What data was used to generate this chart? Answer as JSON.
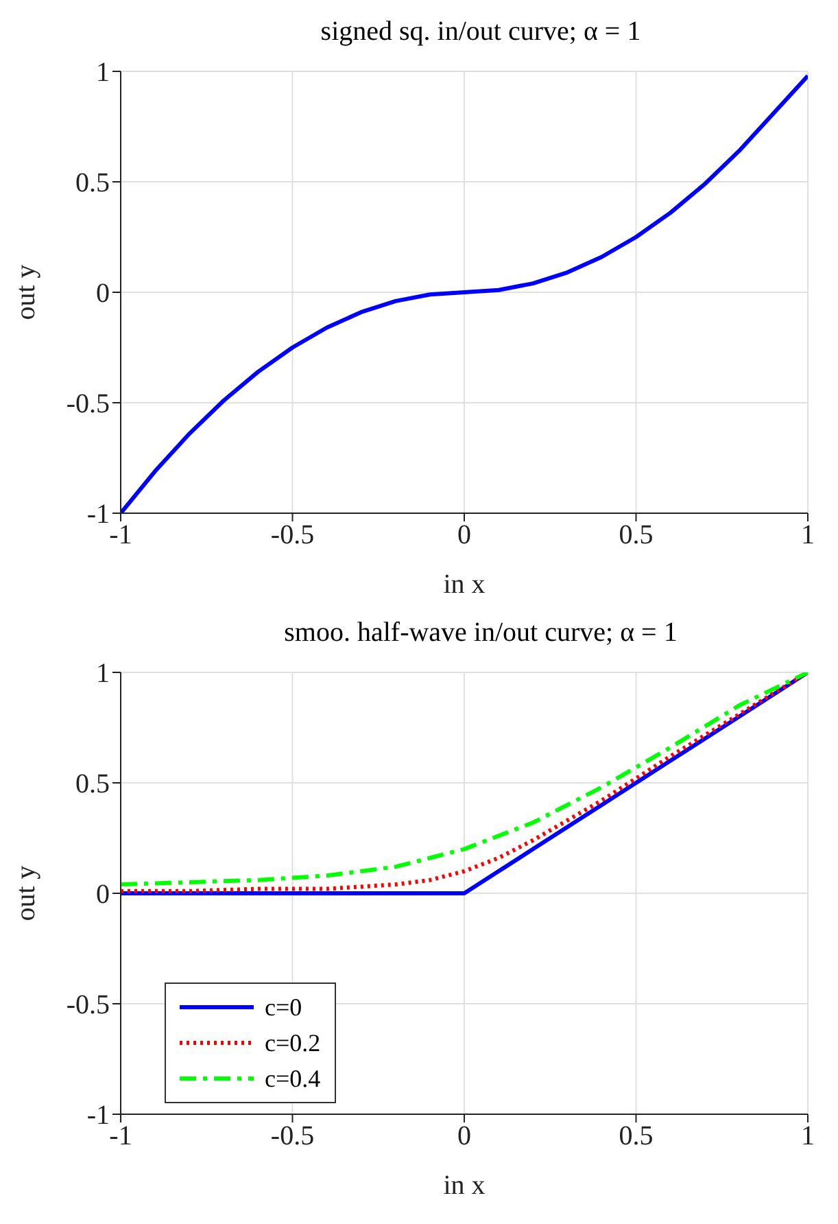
{
  "chart_data": [
    {
      "type": "line",
      "title": "signed sq. in/out curve; α = 1",
      "xlabel": "in x",
      "ylabel": "out y",
      "x": [
        -1,
        -0.9,
        -0.8,
        -0.7,
        -0.6,
        -0.5,
        -0.4,
        -0.3,
        -0.2,
        -0.1,
        0,
        0.1,
        0.2,
        0.3,
        0.4,
        0.5,
        0.6,
        0.7,
        0.8,
        0.9,
        1
      ],
      "series": [
        {
          "color": "#0000ff",
          "values": [
            -1,
            -0.81,
            -0.64,
            -0.49,
            -0.36,
            -0.25,
            -0.16,
            -0.09,
            -0.04,
            -0.01,
            0,
            0.01,
            0.04,
            0.09,
            0.16,
            0.25,
            0.36,
            0.49,
            0.64,
            0.81,
            0.98
          ]
        }
      ],
      "xlim": [
        -1,
        1
      ],
      "xticks": [
        -1,
        -0.5,
        0,
        0.5,
        1
      ],
      "ylim": [
        -1,
        1
      ],
      "yticks": [
        -1,
        -0.5,
        0,
        0.5,
        1
      ],
      "grid": true,
      "marker": "none",
      "line_style": "solid"
    },
    {
      "type": "line",
      "title": "smoo. half-wave in/out curve; α = 1",
      "xlabel": "in x",
      "ylabel": "out y",
      "x": [
        -1,
        -0.8,
        -0.6,
        -0.4,
        -0.2,
        -0.1,
        0,
        0.1,
        0.2,
        0.4,
        0.6,
        0.8,
        1
      ],
      "series": [
        {
          "name": "c=0",
          "color": "#0000ff",
          "line_style": "solid",
          "values": [
            0,
            0,
            0,
            0,
            0,
            0,
            0,
            0.1,
            0.2,
            0.4,
            0.6,
            0.8,
            1
          ]
        },
        {
          "name": "c=0.2",
          "color": "#ff0000",
          "line_style": "dotted",
          "values": [
            0.01,
            0.01,
            0.02,
            0.02,
            0.04,
            0.06,
            0.1,
            0.16,
            0.24,
            0.42,
            0.62,
            0.81,
            1
          ]
        },
        {
          "name": "c=0.4",
          "color": "#00ff00",
          "line_style": "dashed",
          "values": [
            0.04,
            0.05,
            0.06,
            0.08,
            0.12,
            0.16,
            0.2,
            0.26,
            0.32,
            0.48,
            0.66,
            0.85,
            1
          ]
        }
      ],
      "xlim": [
        -1,
        1
      ],
      "xticks": [
        -1,
        -0.5,
        0,
        0.5,
        1
      ],
      "ylim": [
        -1,
        1
      ],
      "yticks": [
        -1,
        -0.5,
        0,
        0.5,
        1
      ],
      "grid": true,
      "legend": "bottom left",
      "marker": "none"
    }
  ]
}
